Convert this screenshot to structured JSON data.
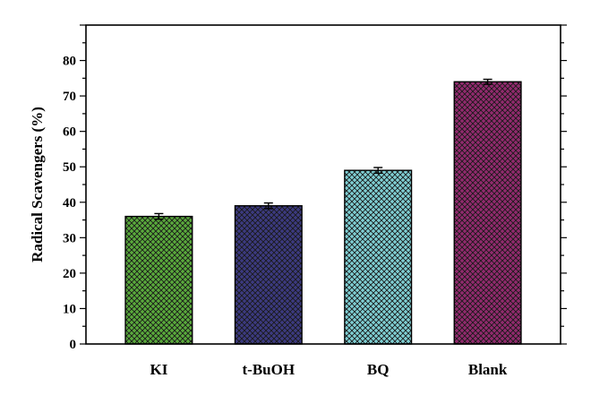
{
  "chart_data": {
    "type": "bar",
    "categories": [
      "KI",
      "t-BuOH",
      "BQ",
      "Blank"
    ],
    "values": [
      36,
      39,
      49,
      74
    ],
    "error": [
      0.8,
      0.8,
      0.8,
      0.7
    ],
    "colors": [
      "#5aaa3c",
      "#3c3a80",
      "#7fcfd3",
      "#922a6e"
    ],
    "pattern": "crosshatch",
    "title": "",
    "xlabel": "",
    "ylabel": "Radical Scavengers (%)",
    "ylim": [
      0,
      90
    ],
    "yticks": [
      0,
      10,
      20,
      30,
      40,
      50,
      60,
      70,
      80
    ],
    "grid": false,
    "legend": "none"
  }
}
